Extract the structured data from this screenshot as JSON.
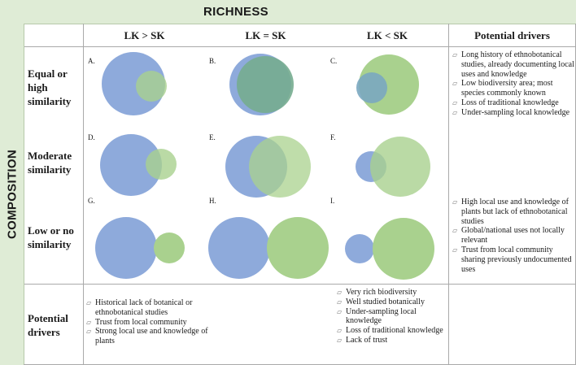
{
  "titles": {
    "richness": "RICHNESS",
    "composition": "COMPOSITION"
  },
  "columns": [
    "LK > SK",
    "LK = SK",
    "LK < SK",
    "Potential drivers"
  ],
  "rows": [
    "Equal or high similarity",
    "Moderate similarity",
    "Low or no similarity",
    "Potential drivers"
  ],
  "colors": {
    "header_band": "#dfecd6",
    "lk_circle": "#8eaadb",
    "sk_circle": "#a9d18e",
    "overlap": "#76ac8f"
  },
  "cells": [
    {
      "letter": "A.",
      "lk_size": "large",
      "sk_size": "small",
      "overlap": "sk-inside-lk"
    },
    {
      "letter": "B.",
      "lk_size": "large",
      "sk_size": "large",
      "overlap": "near-complete"
    },
    {
      "letter": "C.",
      "lk_size": "small",
      "sk_size": "large",
      "overlap": "lk-inside-sk"
    },
    {
      "letter": "D.",
      "lk_size": "large",
      "sk_size": "small",
      "overlap": "partial"
    },
    {
      "letter": "E.",
      "lk_size": "large",
      "sk_size": "large",
      "overlap": "partial"
    },
    {
      "letter": "F.",
      "lk_size": "small",
      "sk_size": "large",
      "overlap": "partial"
    },
    {
      "letter": "G.",
      "lk_size": "large",
      "sk_size": "small",
      "overlap": "none"
    },
    {
      "letter": "H.",
      "lk_size": "large",
      "sk_size": "large",
      "overlap": "none"
    },
    {
      "letter": "I.",
      "lk_size": "small",
      "sk_size": "large",
      "overlap": "none"
    }
  ],
  "drivers": {
    "right_top": [
      "Long history of ethnobotanical studies, already documenting local uses and knowledge",
      "Low biodiversity area; most species commonly known",
      "Loss of traditional knowledge",
      "Under-sampling local knowledge"
    ],
    "right_bottom": [
      "High local use and knowledge of plants but lack of ethnobotanical studies",
      "Global/national uses not locally relevant",
      "Trust from local community sharing previously undocumented uses"
    ],
    "bottom_left": [
      "Historical lack of botanical or ethnobotanical studies",
      "Trust from local community",
      "Strong local use and knowledge of plants"
    ],
    "bottom_right": [
      "Very rich biodiversity",
      "Well studied botanically",
      "Under-sampling local knowledge",
      "Loss of traditional knowledge",
      "Lack of trust"
    ]
  }
}
